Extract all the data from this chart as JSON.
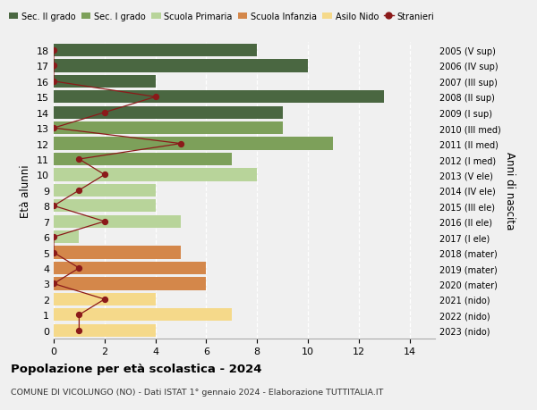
{
  "ages": [
    0,
    1,
    2,
    3,
    4,
    5,
    6,
    7,
    8,
    9,
    10,
    11,
    12,
    13,
    14,
    15,
    16,
    17,
    18
  ],
  "years": [
    "2023 (nido)",
    "2022 (nido)",
    "2021 (nido)",
    "2020 (mater)",
    "2019 (mater)",
    "2018 (mater)",
    "2017 (I ele)",
    "2016 (II ele)",
    "2015 (III ele)",
    "2014 (IV ele)",
    "2013 (V ele)",
    "2012 (I med)",
    "2011 (II med)",
    "2010 (III med)",
    "2009 (I sup)",
    "2008 (II sup)",
    "2007 (III sup)",
    "2006 (IV sup)",
    "2005 (V sup)"
  ],
  "bar_values": [
    4,
    7,
    4,
    6,
    6,
    5,
    1,
    5,
    4,
    4,
    8,
    7,
    11,
    9,
    9,
    13,
    4,
    10,
    8
  ],
  "bar_colors": [
    "#f5d98a",
    "#f5d98a",
    "#f5d98a",
    "#d4874a",
    "#d4874a",
    "#d4874a",
    "#b8d49a",
    "#b8d49a",
    "#b8d49a",
    "#b8d49a",
    "#b8d49a",
    "#7da05a",
    "#7da05a",
    "#7da05a",
    "#4a6741",
    "#4a6741",
    "#4a6741",
    "#4a6741",
    "#4a6741"
  ],
  "stranieri_values": [
    1,
    1,
    2,
    0,
    1,
    0,
    0,
    2,
    0,
    1,
    2,
    1,
    5,
    0,
    2,
    4,
    0,
    0,
    0
  ],
  "legend_labels": [
    "Sec. II grado",
    "Sec. I grado",
    "Scuola Primaria",
    "Scuola Infanzia",
    "Asilo Nido",
    "Stranieri"
  ],
  "legend_colors": [
    "#4a6741",
    "#7da05a",
    "#b8d49a",
    "#d4874a",
    "#f5d98a",
    "#8b1a1a"
  ],
  "ylabel": "Età alunni",
  "ylabel_right": "Anni di nascita",
  "title": "Popolazione per età scolastica - 2024",
  "subtitle": "COMUNE DI VICOLUNGO (NO) - Dati ISTAT 1° gennaio 2024 - Elaborazione TUTTITALIA.IT",
  "xlim": [
    0,
    15
  ],
  "background_color": "#f0f0f0",
  "stranieri_color": "#8b1a1a"
}
